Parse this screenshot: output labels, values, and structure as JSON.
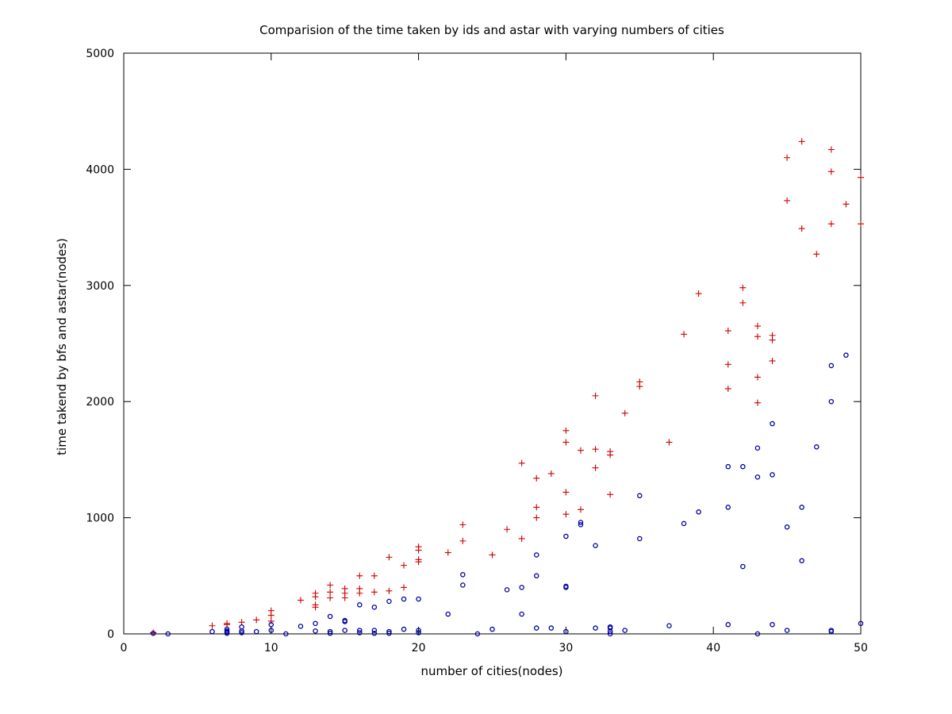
{
  "chart_data": {
    "type": "scatter",
    "title": "Comparision of the time taken by ids and astar with varying numbers of cities",
    "xlabel": "number of cities(nodes)",
    "ylabel": "time takend by bfs and astar(nodes)",
    "xlim": [
      0,
      50
    ],
    "ylim": [
      0,
      5000
    ],
    "xticks": [
      0,
      10,
      20,
      30,
      40,
      50
    ],
    "yticks": [
      0,
      1000,
      2000,
      3000,
      4000,
      5000
    ],
    "grid": false,
    "legend": "none",
    "series": [
      {
        "marker": "plus",
        "color": "#cc0000",
        "points": [
          [
            2,
            10
          ],
          [
            6,
            70
          ],
          [
            7,
            90
          ],
          [
            7,
            80
          ],
          [
            8,
            100
          ],
          [
            9,
            120
          ],
          [
            10,
            200
          ],
          [
            10,
            160
          ],
          [
            10,
            110
          ],
          [
            12,
            290
          ],
          [
            13,
            350
          ],
          [
            13,
            320
          ],
          [
            13,
            250
          ],
          [
            13,
            230
          ],
          [
            14,
            420
          ],
          [
            14,
            360
          ],
          [
            14,
            310
          ],
          [
            15,
            390
          ],
          [
            15,
            350
          ],
          [
            15,
            310
          ],
          [
            16,
            500
          ],
          [
            16,
            390
          ],
          [
            16,
            350
          ],
          [
            17,
            500
          ],
          [
            17,
            360
          ],
          [
            18,
            660
          ],
          [
            18,
            370
          ],
          [
            19,
            590
          ],
          [
            19,
            400
          ],
          [
            20,
            750
          ],
          [
            20,
            720
          ],
          [
            20,
            640
          ],
          [
            20,
            620
          ],
          [
            22,
            700
          ],
          [
            23,
            940
          ],
          [
            23,
            800
          ],
          [
            25,
            680
          ],
          [
            26,
            900
          ],
          [
            27,
            1470
          ],
          [
            27,
            820
          ],
          [
            28,
            1340
          ],
          [
            28,
            1090
          ],
          [
            28,
            1000
          ],
          [
            29,
            1380
          ],
          [
            30,
            1750
          ],
          [
            30,
            1650
          ],
          [
            30,
            1220
          ],
          [
            30,
            1030
          ],
          [
            31,
            1580
          ],
          [
            31,
            1070
          ],
          [
            32,
            2050
          ],
          [
            32,
            1590
          ],
          [
            32,
            1430
          ],
          [
            33,
            1570
          ],
          [
            33,
            1540
          ],
          [
            33,
            1200
          ],
          [
            34,
            1900
          ],
          [
            35,
            2170
          ],
          [
            35,
            2130
          ],
          [
            37,
            1650
          ],
          [
            38,
            2580
          ],
          [
            39,
            2930
          ],
          [
            41,
            2610
          ],
          [
            41,
            2320
          ],
          [
            41,
            2110
          ],
          [
            42,
            2980
          ],
          [
            42,
            2850
          ],
          [
            43,
            2650
          ],
          [
            43,
            2560
          ],
          [
            43,
            2210
          ],
          [
            43,
            1990
          ],
          [
            44,
            2570
          ],
          [
            44,
            2530
          ],
          [
            44,
            2350
          ],
          [
            45,
            4100
          ],
          [
            45,
            3730
          ],
          [
            46,
            4240
          ],
          [
            46,
            3490
          ],
          [
            47,
            3270
          ],
          [
            48,
            4170
          ],
          [
            48,
            3980
          ],
          [
            48,
            3530
          ],
          [
            49,
            3700
          ],
          [
            50,
            3930
          ],
          [
            50,
            3530
          ]
        ]
      },
      {
        "marker": "circle",
        "color": "#00009e",
        "points": [
          [
            2,
            5
          ],
          [
            3,
            0
          ],
          [
            6,
            20
          ],
          [
            7,
            40
          ],
          [
            7,
            25
          ],
          [
            7,
            15
          ],
          [
            7,
            5
          ],
          [
            8,
            60
          ],
          [
            8,
            25
          ],
          [
            8,
            10
          ],
          [
            9,
            20
          ],
          [
            10,
            80
          ],
          [
            10,
            30
          ],
          [
            11,
            0
          ],
          [
            12,
            65
          ],
          [
            13,
            90
          ],
          [
            13,
            25
          ],
          [
            14,
            150
          ],
          [
            14,
            20
          ],
          [
            14,
            5
          ],
          [
            15,
            115
          ],
          [
            15,
            105
          ],
          [
            15,
            30
          ],
          [
            16,
            250
          ],
          [
            16,
            30
          ],
          [
            16,
            10
          ],
          [
            17,
            230
          ],
          [
            17,
            30
          ],
          [
            17,
            5
          ],
          [
            18,
            280
          ],
          [
            18,
            20
          ],
          [
            18,
            5
          ],
          [
            19,
            300
          ],
          [
            19,
            40
          ],
          [
            20,
            300
          ],
          [
            20,
            30
          ],
          [
            20,
            10
          ],
          [
            22,
            170
          ],
          [
            23,
            510
          ],
          [
            23,
            420
          ],
          [
            24,
            0
          ],
          [
            25,
            40
          ],
          [
            26,
            380
          ],
          [
            27,
            400
          ],
          [
            27,
            170
          ],
          [
            28,
            680
          ],
          [
            28,
            500
          ],
          [
            28,
            50
          ],
          [
            29,
            50
          ],
          [
            30,
            840
          ],
          [
            30,
            410
          ],
          [
            30,
            400
          ],
          [
            30,
            20
          ],
          [
            31,
            960
          ],
          [
            31,
            940
          ],
          [
            32,
            760
          ],
          [
            32,
            50
          ],
          [
            33,
            60
          ],
          [
            33,
            50
          ],
          [
            33,
            20
          ],
          [
            33,
            0
          ],
          [
            34,
            30
          ],
          [
            35,
            1190
          ],
          [
            35,
            820
          ],
          [
            37,
            70
          ],
          [
            38,
            950
          ],
          [
            39,
            1050
          ],
          [
            41,
            1440
          ],
          [
            41,
            1090
          ],
          [
            41,
            80
          ],
          [
            42,
            1440
          ],
          [
            42,
            580
          ],
          [
            43,
            1600
          ],
          [
            43,
            1350
          ],
          [
            43,
            0
          ],
          [
            44,
            1810
          ],
          [
            44,
            1370
          ],
          [
            44,
            80
          ],
          [
            45,
            920
          ],
          [
            45,
            30
          ],
          [
            46,
            1090
          ],
          [
            46,
            630
          ],
          [
            47,
            1610
          ],
          [
            48,
            2310
          ],
          [
            48,
            2000
          ],
          [
            48,
            30
          ],
          [
            48,
            20
          ],
          [
            49,
            2400
          ],
          [
            50,
            90
          ]
        ]
      }
    ]
  }
}
